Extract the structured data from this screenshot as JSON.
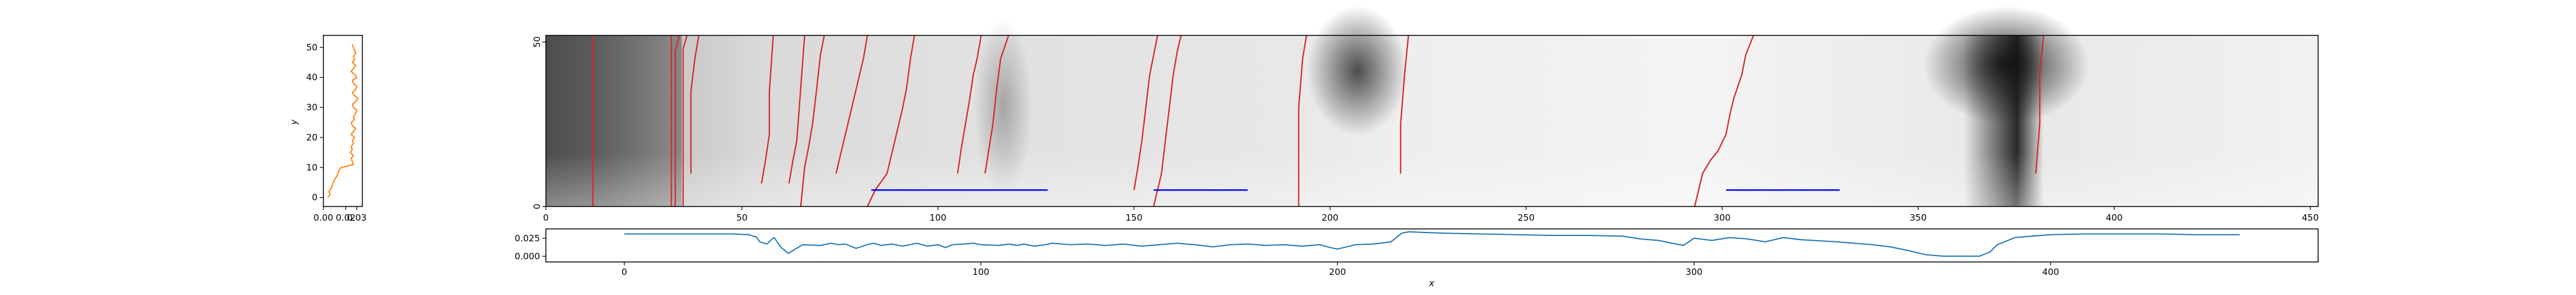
{
  "colors": {
    "profile_line": "#ff7f0e",
    "series_line": "#1f77b4",
    "red_path": "#d62728",
    "segment": "#0000ff",
    "axis": "#000000"
  },
  "chart_data": [
    {
      "name": "marginal-y-profile",
      "type": "line",
      "xlim": [
        0,
        0.035
      ],
      "ylim": [
        -3,
        54
      ],
      "xticks": [
        0.0,
        0.02,
        0.03
      ],
      "xtick_labels": [
        "0.00",
        "0.02",
        "0.03"
      ],
      "yticks": [
        0,
        10,
        20,
        30,
        40,
        50
      ],
      "ytick_labels": [
        "0",
        "10",
        "20",
        "30",
        "40",
        "50"
      ],
      "ylabel": "y",
      "values": [
        0.004,
        0.006,
        0.005,
        0.007,
        0.008,
        0.009,
        0.01,
        0.012,
        0.013,
        0.014,
        0.016,
        0.027,
        0.026,
        0.025,
        0.027,
        0.024,
        0.026,
        0.025,
        0.027,
        0.026,
        0.028,
        0.025,
        0.027,
        0.029,
        0.026,
        0.025,
        0.028,
        0.027,
        0.029,
        0.03,
        0.027,
        0.026,
        0.029,
        0.031,
        0.028,
        0.026,
        0.029,
        0.03,
        0.027,
        0.026,
        0.03,
        0.028,
        0.025,
        0.027,
        0.029,
        0.026,
        0.028,
        0.027,
        0.029,
        0.028,
        0.027,
        0.026
      ]
    },
    {
      "name": "heatmap",
      "type": "heatmap",
      "xlim": [
        0,
        452
      ],
      "ylim": [
        0,
        52
      ],
      "xticks": [
        0,
        50,
        100,
        150,
        200,
        250,
        300,
        350,
        400,
        450
      ],
      "xtick_labels": [
        "0",
        "50",
        "100",
        "150",
        "200",
        "250",
        "300",
        "350",
        "400",
        "450"
      ],
      "yticks": [
        0,
        50
      ],
      "ytick_labels": [
        "0",
        "50"
      ],
      "red_paths": [
        [
          [
            12,
            0
          ],
          [
            12,
            52
          ]
        ],
        [
          [
            32,
            0
          ],
          [
            32,
            52
          ]
        ],
        [
          [
            33,
            0
          ],
          [
            33,
            47
          ],
          [
            34,
            52
          ]
        ],
        [
          [
            35,
            0
          ],
          [
            35,
            48
          ],
          [
            36,
            52
          ]
        ],
        [
          [
            37,
            10
          ],
          [
            37,
            35
          ],
          [
            38,
            45
          ],
          [
            39,
            52
          ]
        ],
        [
          [
            55,
            7
          ],
          [
            56,
            14
          ],
          [
            57,
            22
          ],
          [
            57,
            35
          ],
          [
            58,
            52
          ]
        ],
        [
          [
            62,
            7
          ],
          [
            63,
            14
          ],
          [
            64,
            20
          ],
          [
            65,
            36
          ],
          [
            66,
            52
          ]
        ],
        [
          [
            65,
            0
          ],
          [
            66,
            12
          ],
          [
            67,
            18
          ],
          [
            68,
            25
          ],
          [
            69,
            35
          ],
          [
            70,
            46
          ],
          [
            71,
            52
          ]
        ],
        [
          [
            74,
            10
          ],
          [
            75,
            15
          ],
          [
            76,
            20
          ],
          [
            77,
            25
          ],
          [
            78,
            30
          ],
          [
            79,
            35
          ],
          [
            80,
            40
          ],
          [
            81,
            45
          ],
          [
            82,
            52
          ]
        ],
        [
          [
            82,
            0
          ],
          [
            84,
            5
          ],
          [
            87,
            10
          ],
          [
            89,
            20
          ],
          [
            90,
            25
          ],
          [
            91,
            30
          ],
          [
            92,
            36
          ],
          [
            93,
            45
          ],
          [
            94,
            52
          ]
        ],
        [
          [
            105,
            10
          ],
          [
            106,
            18
          ],
          [
            107,
            25
          ],
          [
            108,
            32
          ],
          [
            109,
            40
          ],
          [
            110,
            45
          ],
          [
            111,
            52
          ]
        ],
        [
          [
            112,
            10
          ],
          [
            114,
            25
          ],
          [
            115,
            36
          ],
          [
            116,
            45
          ],
          [
            118,
            52
          ]
        ],
        [
          [
            150,
            5
          ],
          [
            151,
            12
          ],
          [
            152,
            20
          ],
          [
            153,
            30
          ],
          [
            154,
            40
          ],
          [
            155,
            46
          ],
          [
            156,
            52
          ]
        ],
        [
          [
            155,
            0
          ],
          [
            157,
            10
          ],
          [
            158,
            20
          ],
          [
            159,
            30
          ],
          [
            160,
            40
          ],
          [
            161,
            47
          ],
          [
            162,
            52
          ]
        ],
        [
          [
            192,
            0
          ],
          [
            192,
            30
          ],
          [
            193,
            45
          ],
          [
            194,
            52
          ]
        ],
        [
          [
            218,
            10
          ],
          [
            218,
            25
          ],
          [
            219,
            40
          ],
          [
            220,
            52
          ]
        ],
        [
          [
            293,
            0
          ],
          [
            295,
            10
          ],
          [
            297,
            14
          ],
          [
            299,
            17
          ],
          [
            301,
            22
          ],
          [
            302,
            28
          ],
          [
            303,
            33
          ],
          [
            305,
            40
          ],
          [
            306,
            46
          ],
          [
            308,
            52
          ]
        ],
        [
          [
            380,
            10
          ],
          [
            381,
            25
          ],
          [
            381,
            40
          ],
          [
            382,
            52
          ]
        ]
      ],
      "segments": [
        {
          "x": [
            83,
            128
          ],
          "y": 5
        },
        {
          "x": [
            155,
            179
          ],
          "y": 5
        },
        {
          "x": [
            301,
            330
          ],
          "y": 5
        }
      ]
    },
    {
      "name": "bottom-series",
      "type": "line",
      "xlim": [
        -22,
        475
      ],
      "ylim": [
        -0.008,
        0.038
      ],
      "yticks": [
        0.0,
        0.025
      ],
      "ytick_labels": [
        "0.000",
        "0.025"
      ],
      "xticks": [
        0,
        100,
        200,
        300,
        400
      ],
      "xtick_labels": [
        "0",
        "100",
        "200",
        "300",
        "400"
      ],
      "xlabel": "x",
      "x": [
        0,
        10,
        20,
        30,
        35,
        36,
        37,
        38,
        40,
        41,
        42,
        44,
        46,
        50,
        55,
        58,
        60,
        62,
        65,
        68,
        70,
        72,
        75,
        78,
        80,
        82,
        85,
        88,
        90,
        92,
        95,
        98,
        100,
        105,
        108,
        110,
        112,
        115,
        118,
        120,
        125,
        130,
        135,
        140,
        145,
        150,
        155,
        160,
        165,
        170,
        175,
        180,
        185,
        190,
        195,
        198,
        200,
        205,
        210,
        215,
        218,
        220,
        225,
        230,
        240,
        250,
        260,
        270,
        280,
        285,
        290,
        295,
        297,
        300,
        305,
        310,
        315,
        320,
        325,
        330,
        340,
        350,
        355,
        360,
        365,
        370,
        375,
        380,
        383,
        385,
        390,
        400,
        410,
        420,
        430,
        440,
        450,
        453
      ],
      "values": [
        0.031,
        0.031,
        0.031,
        0.031,
        0.03,
        0.028,
        0.027,
        0.02,
        0.017,
        0.022,
        0.026,
        0.012,
        0.004,
        0.016,
        0.015,
        0.018,
        0.016,
        0.017,
        0.011,
        0.016,
        0.018,
        0.015,
        0.017,
        0.014,
        0.016,
        0.018,
        0.014,
        0.016,
        0.012,
        0.016,
        0.017,
        0.018,
        0.016,
        0.015,
        0.017,
        0.015,
        0.017,
        0.014,
        0.016,
        0.018,
        0.016,
        0.017,
        0.015,
        0.017,
        0.014,
        0.016,
        0.018,
        0.016,
        0.013,
        0.016,
        0.017,
        0.015,
        0.016,
        0.014,
        0.016,
        0.012,
        0.01,
        0.016,
        0.017,
        0.02,
        0.032,
        0.034,
        0.033,
        0.032,
        0.031,
        0.03,
        0.029,
        0.029,
        0.028,
        0.024,
        0.022,
        0.017,
        0.015,
        0.025,
        0.022,
        0.026,
        0.024,
        0.02,
        0.026,
        0.023,
        0.02,
        0.016,
        0.013,
        0.008,
        0.002,
        0.0,
        0.0,
        0.0,
        0.006,
        0.016,
        0.026,
        0.03,
        0.031,
        0.031,
        0.031,
        0.03,
        0.03,
        0.03
      ]
    }
  ]
}
